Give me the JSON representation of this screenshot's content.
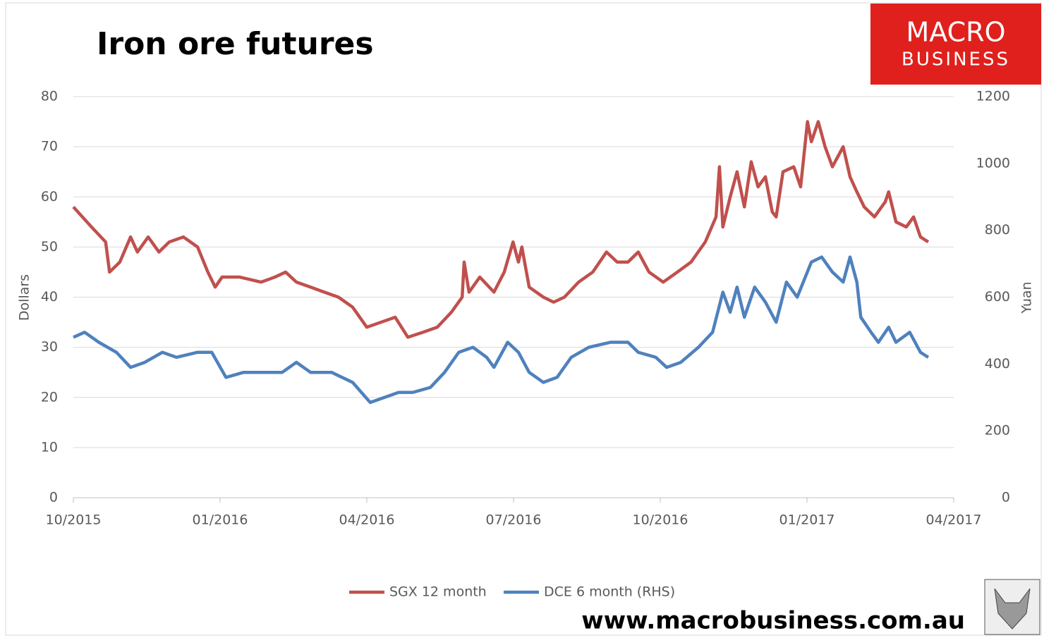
{
  "logo": {
    "line1": "MACRO",
    "line2": "BUSINESS"
  },
  "footer": "www.macrobusiness.com.au",
  "chart_data": {
    "type": "line",
    "title": "Iron ore futures",
    "ylabel": "Dollars",
    "y2label": "Yuan",
    "xlim": [
      0,
      18
    ],
    "xticks": [
      {
        "value": 0,
        "label": "10/2015"
      },
      {
        "value": 3,
        "label": "01/2016"
      },
      {
        "value": 6,
        "label": "04/2016"
      },
      {
        "value": 9,
        "label": "07/2016"
      },
      {
        "value": 12,
        "label": "10/2016"
      },
      {
        "value": 15,
        "label": "01/2017"
      },
      {
        "value": 18,
        "label": "04/2017"
      }
    ],
    "ylim": [
      0,
      80
    ],
    "yticks": [
      0,
      10,
      20,
      30,
      40,
      50,
      60,
      70,
      80
    ],
    "y2lim": [
      0,
      1200
    ],
    "y2ticks": [
      0,
      200,
      400,
      600,
      800,
      1000,
      1200
    ],
    "grid": true,
    "legend": "bottom",
    "series": [
      {
        "name": "SGX 12 month",
        "color": "#c0504d",
        "x": [
          0,
          0.37,
          0.66,
          0.74,
          0.95,
          1.17,
          1.31,
          1.53,
          1.75,
          1.96,
          2.25,
          2.54,
          2.75,
          2.9,
          3.04,
          3.4,
          3.84,
          4.12,
          4.34,
          4.56,
          4.85,
          5.13,
          5.42,
          5.71,
          6.0,
          6.29,
          6.58,
          6.84,
          7.15,
          7.44,
          7.73,
          7.95,
          7.99,
          8.09,
          8.31,
          8.6,
          8.81,
          8.99,
          9.1,
          9.17,
          9.32,
          9.61,
          9.82,
          10.04,
          10.33,
          10.62,
          10.9,
          11.12,
          11.34,
          11.55,
          11.77,
          12.06,
          12.35,
          12.63,
          12.92,
          13.14,
          13.21,
          13.28,
          13.43,
          13.57,
          13.72,
          13.86,
          14.0,
          14.15,
          14.29,
          14.37,
          14.51,
          14.73,
          14.87,
          15.01,
          15.09,
          15.23,
          15.37,
          15.52,
          15.74,
          15.88,
          16.02,
          16.17,
          16.38,
          16.6,
          16.67,
          16.82,
          17.03,
          17.18,
          17.32,
          17.48
        ],
        "values": [
          58,
          54,
          51,
          45,
          47,
          52,
          49,
          52,
          49,
          51,
          52,
          50,
          45,
          42,
          44,
          44,
          43,
          44,
          45,
          43,
          42,
          41,
          40,
          38,
          34,
          35,
          36,
          32,
          33,
          34,
          37,
          40,
          47,
          41,
          44,
          41,
          45,
          51,
          47,
          50,
          42,
          40,
          39,
          40,
          43,
          45,
          49,
          47,
          47,
          49,
          45,
          43,
          45,
          47,
          51,
          56,
          66,
          54,
          60,
          65,
          58,
          67,
          62,
          64,
          57,
          56,
          65,
          66,
          62,
          75,
          71,
          75,
          70,
          66,
          70,
          64,
          61,
          58,
          56,
          59,
          61,
          55,
          54,
          56,
          52,
          51
        ]
      },
      {
        "name": "DCE 6 month (RHS)",
        "color": "#4f81bd",
        "axis": "y2",
        "x": [
          0,
          0.23,
          0.52,
          0.88,
          1.17,
          1.46,
          1.82,
          2.11,
          2.54,
          2.83,
          3.12,
          3.48,
          3.84,
          4.27,
          4.56,
          4.85,
          5.28,
          5.71,
          6.07,
          6.36,
          6.65,
          6.94,
          7.3,
          7.59,
          7.88,
          8.17,
          8.45,
          8.6,
          8.88,
          9.1,
          9.32,
          9.61,
          9.89,
          10.18,
          10.54,
          10.98,
          11.34,
          11.55,
          11.91,
          12.13,
          12.42,
          12.78,
          13.07,
          13.28,
          13.43,
          13.57,
          13.72,
          13.93,
          14.15,
          14.37,
          14.58,
          14.8,
          15.09,
          15.3,
          15.52,
          15.74,
          15.88,
          16.02,
          16.1,
          16.31,
          16.46,
          16.67,
          16.82,
          17.1,
          17.32,
          17.48
        ],
        "values": [
          480,
          495,
          465,
          435,
          390,
          405,
          435,
          420,
          435,
          435,
          360,
          375,
          375,
          375,
          405,
          375,
          375,
          345,
          285,
          300,
          315,
          315,
          330,
          375,
          435,
          450,
          420,
          390,
          465,
          435,
          375,
          345,
          360,
          420,
          450,
          465,
          465,
          435,
          420,
          390,
          405,
          450,
          495,
          615,
          555,
          630,
          540,
          630,
          585,
          525,
          645,
          600,
          705,
          720,
          675,
          645,
          720,
          645,
          540,
          495,
          465,
          510,
          465,
          495,
          435,
          420
        ]
      }
    ]
  }
}
